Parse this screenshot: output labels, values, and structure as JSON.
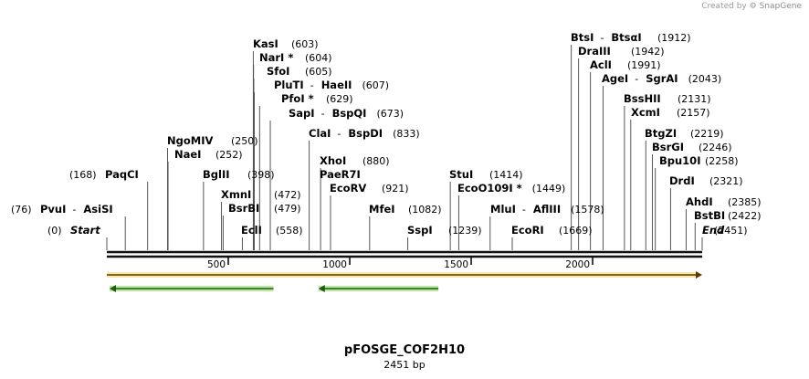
{
  "credit": {
    "prefix": "Created by",
    "brand": "SnapGene"
  },
  "plasmid": {
    "name": "pFOSGE_COF2H10",
    "size_label": "2451 bp",
    "length_bp": 2451
  },
  "ruler": {
    "ticks": [
      500,
      1000,
      1500,
      2000
    ]
  },
  "sites": [
    {
      "id": "start",
      "names": [
        "Start"
      ],
      "pos_label": "(0)",
      "bp": 0,
      "italic": true
    },
    {
      "id": "pvui",
      "names": [
        "PvuI",
        "AsiSI"
      ],
      "pos_label": "(76)",
      "bp": 76
    },
    {
      "id": "paqci",
      "names": [
        "PaqCI"
      ],
      "pos_label": "(168)",
      "bp": 168
    },
    {
      "id": "ngomiv",
      "names": [
        "NgoMIV"
      ],
      "pos_label": "(250)",
      "bp": 250
    },
    {
      "id": "naei",
      "names": [
        "NaeI"
      ],
      "pos_label": "(252)",
      "bp": 252
    },
    {
      "id": "bglii",
      "names": [
        "BglII"
      ],
      "pos_label": "(398)",
      "bp": 398
    },
    {
      "id": "xmni",
      "names": [
        "XmnI"
      ],
      "pos_label": "(472)",
      "bp": 472
    },
    {
      "id": "bsrbi",
      "names": [
        "BsrBI"
      ],
      "pos_label": "(479)",
      "bp": 479
    },
    {
      "id": "ecli",
      "names": [
        "EclI"
      ],
      "pos_label": "(558)",
      "bp": 558
    },
    {
      "id": "kasi",
      "names": [
        "KasI"
      ],
      "pos_label": "(603)",
      "bp": 603
    },
    {
      "id": "nari",
      "names": [
        "NarI *"
      ],
      "pos_label": "(604)",
      "bp": 604
    },
    {
      "id": "sfoi",
      "names": [
        "SfoI"
      ],
      "pos_label": "(605)",
      "bp": 605
    },
    {
      "id": "pluti",
      "names": [
        "PluTI",
        "HaeII"
      ],
      "pos_label": "(607)",
      "bp": 607
    },
    {
      "id": "pfoi",
      "names": [
        "PfoI *"
      ],
      "pos_label": "(629)",
      "bp": 629
    },
    {
      "id": "sapi",
      "names": [
        "SapI",
        "BspQI"
      ],
      "pos_label": "(673)",
      "bp": 673
    },
    {
      "id": "clai",
      "names": [
        "ClaI",
        "BspDI"
      ],
      "pos_label": "(833)",
      "bp": 833
    },
    {
      "id": "xhoi",
      "names": [
        "XhoI"
      ],
      "pos_label": "(880)",
      "bp": 880
    },
    {
      "id": "paer7i",
      "names": [
        "PaeR7I"
      ],
      "pos_label": "",
      "bp": 880
    },
    {
      "id": "ecorv",
      "names": [
        "EcoRV"
      ],
      "pos_label": "(921)",
      "bp": 921
    },
    {
      "id": "mfei",
      "names": [
        "MfeI"
      ],
      "pos_label": "(1082)",
      "bp": 1082
    },
    {
      "id": "sspi",
      "names": [
        "SspI"
      ],
      "pos_label": "(1239)",
      "bp": 1239
    },
    {
      "id": "stui",
      "names": [
        "StuI"
      ],
      "pos_label": "(1414)",
      "bp": 1414
    },
    {
      "id": "eco109",
      "names": [
        "EcoO109I *"
      ],
      "pos_label": "(1449)",
      "bp": 1449
    },
    {
      "id": "mlui",
      "names": [
        "MluI",
        "AflIII"
      ],
      "pos_label": "(1578)",
      "bp": 1578
    },
    {
      "id": "ecori",
      "names": [
        "EcoRI"
      ],
      "pos_label": "(1669)",
      "bp": 1669
    },
    {
      "id": "btsi",
      "names": [
        "BtsI",
        "BtsαI"
      ],
      "pos_label": "(1912)",
      "bp": 1912
    },
    {
      "id": "draiii",
      "names": [
        "DraIII"
      ],
      "pos_label": "(1942)",
      "bp": 1942
    },
    {
      "id": "acli",
      "names": [
        "AclI"
      ],
      "pos_label": "(1991)",
      "bp": 1991
    },
    {
      "id": "agei",
      "names": [
        "AgeI",
        "SgrAI"
      ],
      "pos_label": "(2043)",
      "bp": 2043
    },
    {
      "id": "bsshii",
      "names": [
        "BssHII"
      ],
      "pos_label": "(2131)",
      "bp": 2131
    },
    {
      "id": "xcmi",
      "names": [
        "XcmI"
      ],
      "pos_label": "(2157)",
      "bp": 2157
    },
    {
      "id": "btgzi",
      "names": [
        "BtgZI"
      ],
      "pos_label": "(2219)",
      "bp": 2219
    },
    {
      "id": "bsrgi",
      "names": [
        "BsrGI"
      ],
      "pos_label": "(2246)",
      "bp": 2246
    },
    {
      "id": "bpu10i",
      "names": [
        "Bpu10I"
      ],
      "pos_label": "(2258)",
      "bp": 2258
    },
    {
      "id": "drdi",
      "names": [
        "DrdI"
      ],
      "pos_label": "(2321)",
      "bp": 2321
    },
    {
      "id": "ahdi",
      "names": [
        "AhdI"
      ],
      "pos_label": "(2385)",
      "bp": 2385
    },
    {
      "id": "bstbi",
      "names": [
        "BstBI"
      ],
      "pos_label": "(2422)",
      "bp": 2422
    },
    {
      "id": "end",
      "names": [
        "End"
      ],
      "pos_label": "(2451)",
      "bp": 2451,
      "italic": true
    }
  ],
  "features": [
    {
      "id": "full-insert",
      "start_bp": 0,
      "end_bp": 2451,
      "direction": "forward",
      "color": "#f0a020",
      "fill": "#fbe7a8"
    },
    {
      "id": "orf-1",
      "start_bp": 0,
      "end_bp": 686,
      "direction": "reverse",
      "color": "#3aa020",
      "fill": "#b8e8a0"
    },
    {
      "id": "orf-2",
      "start_bp": 860,
      "end_bp": 1365,
      "direction": "reverse",
      "color": "#3aa020",
      "fill": "#b8e8a0"
    }
  ],
  "colors": {
    "backbone": "#111111",
    "leader": "#555555"
  }
}
